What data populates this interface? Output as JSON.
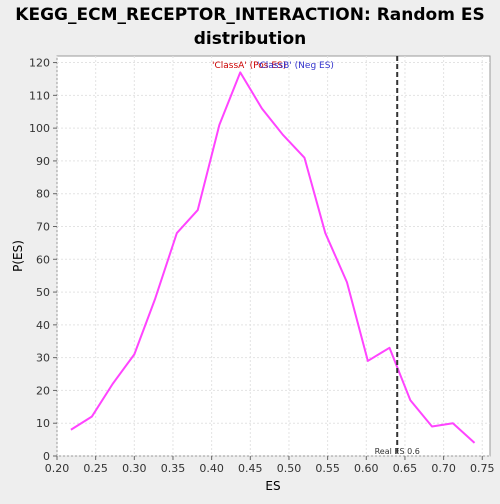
{
  "chart_data": {
    "type": "line",
    "title": "KEGG_ECM_RECEPTOR_INTERACTION: Random ES distribution",
    "title_lines": [
      "KEGG_ECM_RECEPTOR_INTERACTION: Random ES",
      "distribution"
    ],
    "xlabel": "ES",
    "ylabel": "P(ES)",
    "xlim": [
      0.2,
      0.76
    ],
    "ylim": [
      0,
      122
    ],
    "x_ticks": [
      0.2,
      0.25,
      0.3,
      0.35,
      0.4,
      0.45,
      0.5,
      0.55,
      0.6,
      0.65,
      0.7,
      0.75
    ],
    "x_tick_labels": [
      "0.20",
      "0.25",
      "0.30",
      "0.35",
      "0.40",
      "0.45",
      "0.50",
      "0.55",
      "0.60",
      "0.65",
      "0.70",
      "0.75"
    ],
    "y_ticks": [
      0,
      10,
      20,
      30,
      40,
      50,
      60,
      70,
      80,
      90,
      100,
      110,
      120
    ],
    "y_tick_labels": [
      "0",
      "10",
      "20",
      "30",
      "40",
      "50",
      "60",
      "70",
      "80",
      "90",
      "100",
      "110",
      "120"
    ],
    "grid": true,
    "series": [
      {
        "color": "#ff44ff",
        "x": [
          0.218,
          0.245,
          0.272,
          0.3,
          0.327,
          0.355,
          0.382,
          0.41,
          0.437,
          0.465,
          0.492,
          0.52,
          0.547,
          0.575,
          0.602,
          0.63,
          0.657,
          0.685,
          0.712,
          0.74
        ],
        "y": [
          8,
          12,
          22,
          31,
          48,
          68,
          75,
          101,
          117,
          106,
          98,
          91,
          68,
          53,
          29,
          33,
          17,
          9,
          10,
          4
        ]
      }
    ],
    "legend": {
      "position": "top",
      "entries": [
        {
          "text": "'ClassA' (Pos ES)",
          "color": "#cc0000"
        },
        {
          "text": "'ClassB' (Neg ES)",
          "color": "#3333cc"
        }
      ]
    },
    "vline": {
      "x": 0.64,
      "label": "Real ES 0.6",
      "color": "#333333"
    }
  }
}
